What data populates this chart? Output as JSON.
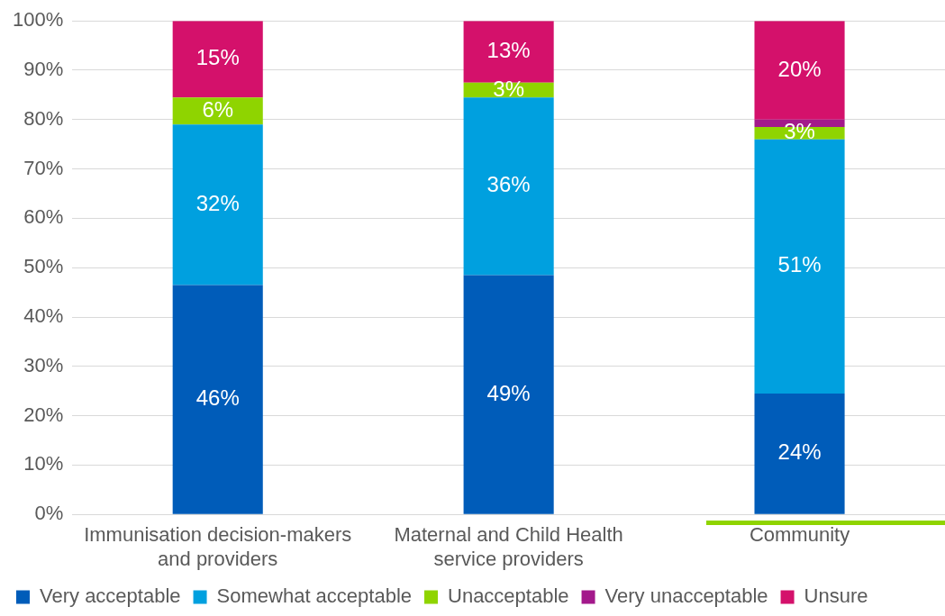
{
  "chart_data": {
    "type": "bar",
    "stacked": true,
    "categories": [
      "Immunisation decision-makers and providers",
      "Maternal and Child Health service providers",
      "Community"
    ],
    "series": [
      {
        "name": "Very acceptable",
        "color": "#005cb9",
        "values": [
          46.5,
          48.5,
          24.5
        ],
        "value_labels": [
          "46%",
          "49%",
          "24%"
        ]
      },
      {
        "name": "Somewhat acceptable",
        "color": "#00a0df",
        "values": [
          32.5,
          36,
          51.5
        ],
        "value_labels": [
          "32%",
          "36%",
          "51%"
        ]
      },
      {
        "name": "Unacceptable",
        "color": "#8fd400",
        "values": [
          5.5,
          3,
          2.5
        ],
        "value_labels": [
          "6%",
          "3%",
          "3%"
        ]
      },
      {
        "name": "Very unacceptable",
        "color": "#a3198b",
        "values": [
          0,
          0,
          1.5
        ],
        "value_labels": [
          null,
          null,
          null
        ]
      },
      {
        "name": "Unsure",
        "color": "#d4116b",
        "values": [
          15.5,
          12.5,
          20
        ],
        "value_labels": [
          "15%",
          "13%",
          "20%"
        ]
      }
    ],
    "ylim": [
      0,
      100
    ],
    "yticks": [
      {
        "value": 0,
        "label": "0%"
      },
      {
        "value": 10,
        "label": "10%"
      },
      {
        "value": 20,
        "label": "20%"
      },
      {
        "value": 30,
        "label": "30%"
      },
      {
        "value": 40,
        "label": "40%"
      },
      {
        "value": 50,
        "label": "50%"
      },
      {
        "value": 60,
        "label": "60%"
      },
      {
        "value": 70,
        "label": "70%"
      },
      {
        "value": 80,
        "label": "80%"
      },
      {
        "value": 90,
        "label": "90%"
      },
      {
        "value": 100,
        "label": "100%"
      }
    ],
    "grid": "y",
    "legend": "bottom"
  }
}
